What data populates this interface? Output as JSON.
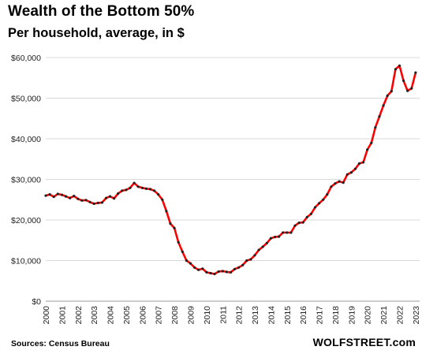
{
  "chart_data": {
    "type": "line",
    "title": "Wealth of the Bottom 50%",
    "subtitle": "Per household, average, in $",
    "source": "Sources: Census Bureau",
    "brand": "WOLFSTREET.com",
    "ylim": [
      0,
      60000
    ],
    "yticks": [
      "$0",
      "$10,000",
      "$20,000",
      "$30,000",
      "$40,000",
      "$50,000",
      "$60,000"
    ],
    "ytick_values": [
      0,
      10000,
      20000,
      30000,
      40000,
      50000,
      60000
    ],
    "xlim": [
      2000,
      2023.25
    ],
    "xticks": [
      "2000",
      "2001",
      "2002",
      "2003",
      "2004",
      "2005",
      "2006",
      "2007",
      "2008",
      "2009",
      "2010",
      "2011",
      "2012",
      "2013",
      "2014",
      "2015",
      "2016",
      "2017",
      "2018",
      "2019",
      "2020",
      "2021",
      "2022",
      "2023"
    ],
    "grid": "horizontal",
    "line_color": "#ff0000",
    "marker_color": "#222222",
    "series": [
      {
        "x": [
          2000.0,
          2000.25,
          2000.5,
          2000.75,
          2001.0,
          2001.25,
          2001.5,
          2001.75,
          2002.0,
          2002.25,
          2002.5,
          2002.75,
          2003.0,
          2003.25,
          2003.5,
          2003.75,
          2004.0,
          2004.25,
          2004.5,
          2004.75,
          2005.0,
          2005.25,
          2005.5,
          2005.75,
          2006.0,
          2006.25,
          2006.5,
          2006.75,
          2007.0,
          2007.25,
          2007.5,
          2007.75,
          2008.0,
          2008.25,
          2008.5,
          2008.75,
          2009.0,
          2009.25,
          2009.5,
          2009.75,
          2010.0,
          2010.25,
          2010.5,
          2010.75,
          2011.0,
          2011.25,
          2011.5,
          2011.75,
          2012.0,
          2012.25,
          2012.5,
          2012.75,
          2013.0,
          2013.25,
          2013.5,
          2013.75,
          2014.0,
          2014.25,
          2014.5,
          2014.75,
          2015.0,
          2015.25,
          2015.5,
          2015.75,
          2016.0,
          2016.25,
          2016.5,
          2016.75,
          2017.0,
          2017.25,
          2017.5,
          2017.75,
          2018.0,
          2018.25,
          2018.5,
          2018.75,
          2019.0,
          2019.25,
          2019.5,
          2019.75,
          2020.0,
          2020.25,
          2020.5,
          2020.75,
          2021.0,
          2021.25,
          2021.5,
          2021.75,
          2022.0,
          2022.25,
          2022.5,
          2022.75,
          2023.0
        ],
        "y": [
          26000,
          26300,
          25700,
          26400,
          26200,
          25800,
          25400,
          25900,
          25200,
          24800,
          24900,
          24400,
          24000,
          24200,
          24300,
          25400,
          25800,
          25300,
          26500,
          27200,
          27400,
          27900,
          29100,
          28200,
          27900,
          27700,
          27600,
          27200,
          26300,
          25000,
          22200,
          19100,
          18000,
          14500,
          12200,
          10000,
          9300,
          8300,
          7700,
          8000,
          7100,
          6900,
          6700,
          7300,
          7400,
          7200,
          7100,
          7900,
          8300,
          8900,
          10000,
          10300,
          11300,
          12600,
          13400,
          14300,
          15500,
          15800,
          15900,
          16900,
          16900,
          16900,
          18600,
          19300,
          19400,
          20700,
          21500,
          23100,
          24100,
          25000,
          26300,
          28200,
          29000,
          29500,
          29200,
          31200,
          31700,
          32600,
          33900,
          34200,
          37300,
          39000,
          42800,
          45500,
          48200,
          50600,
          51700,
          57100,
          58000,
          54300,
          51800,
          52400,
          56300
        ]
      }
    ]
  }
}
